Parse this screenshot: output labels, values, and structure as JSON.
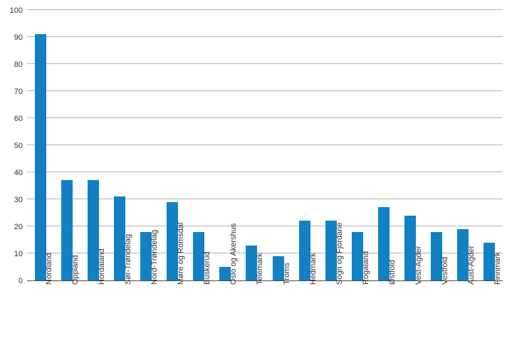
{
  "chart_data": {
    "type": "bar",
    "categories": [
      "Nordland",
      "Oppland",
      "Hordaland",
      "Sør-Trøndelag",
      "Nord-Trøndelag",
      "Møre og Romsdal",
      "Buskerud",
      "Oslo og Akershus",
      "Telemark",
      "Troms",
      "Hedmark",
      "Sogn og Fjordane",
      "Rogaland",
      "Østfold",
      "Vest-Agder",
      "Vestfold",
      "Aust-Agder",
      "Finnmark"
    ],
    "values": [
      91,
      37,
      37,
      31,
      18,
      29,
      18,
      5,
      13,
      9,
      22,
      22,
      18,
      27,
      24,
      18,
      19,
      14
    ],
    "title": "",
    "xlabel": "",
    "ylabel": "",
    "ylim": [
      0,
      100
    ],
    "ytick_step": 10,
    "ytick_labels": [
      "0",
      "10",
      "20",
      "30",
      "40",
      "50",
      "60",
      "70",
      "80",
      "90",
      "100"
    ],
    "grid": true,
    "legend": "none",
    "colors": {
      "bar": "#1181c4",
      "grid": "#b3b3b3",
      "axis": "#4d4d4d",
      "text": "#333333",
      "background": "#ffffff"
    }
  }
}
